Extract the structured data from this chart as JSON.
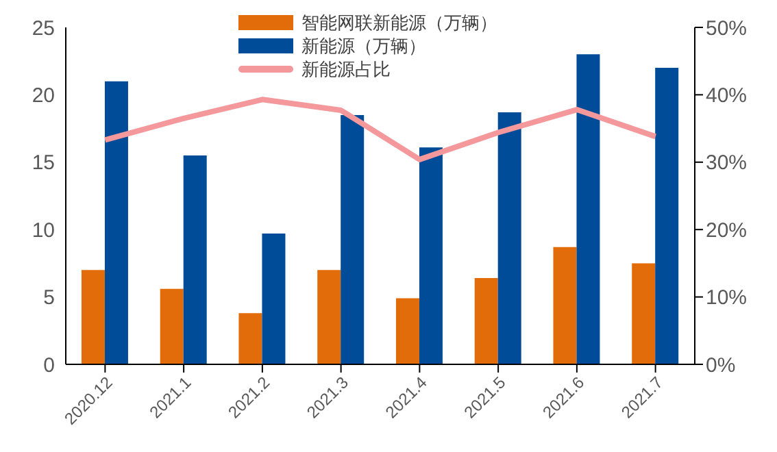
{
  "chart_data": {
    "type": "bar",
    "categories": [
      "2020.12",
      "2021.1",
      "2021.2",
      "2021.3",
      "2021.4",
      "2021.5",
      "2021.6",
      "2021.7"
    ],
    "series": [
      {
        "name": "智能网联新能源（万辆）",
        "color": "#e36c0a",
        "values": [
          7,
          5.6,
          3.8,
          7,
          4.9,
          6.4,
          8.7,
          7.5
        ]
      },
      {
        "name": "新能源（万辆）",
        "color": "#004c99",
        "values": [
          21,
          15.5,
          9.7,
          18.5,
          16.1,
          18.7,
          23,
          22
        ]
      },
      {
        "name": "新能源占比",
        "type": "line",
        "axis": "y2",
        "color": "#f4989c",
        "values": [
          33.3,
          36.5,
          39.3,
          37.7,
          30.4,
          34.4,
          37.8,
          33.8
        ]
      }
    ],
    "ylim": [
      0,
      25
    ],
    "yticks": [
      0,
      5,
      10,
      15,
      20,
      25
    ],
    "y2lim": [
      0,
      50
    ],
    "y2ticks": [
      {
        "value": 0,
        "label": "0%"
      },
      {
        "value": 10,
        "label": "10%"
      },
      {
        "value": 20,
        "label": "20%"
      },
      {
        "value": 30,
        "label": "30%"
      },
      {
        "value": 40,
        "label": "40%"
      },
      {
        "value": 50,
        "label": "50%"
      }
    ],
    "legend": "top",
    "grid": false,
    "marker": "none"
  }
}
